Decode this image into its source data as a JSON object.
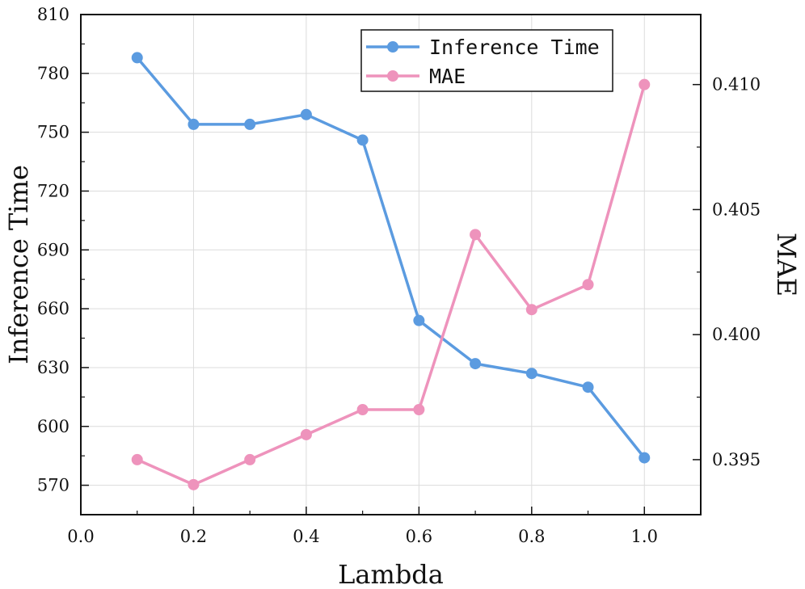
{
  "chart_data": {
    "type": "line",
    "x": [
      0.1,
      0.2,
      0.3,
      0.4,
      0.5,
      0.6,
      0.7,
      0.8,
      0.9,
      1.0
    ],
    "xlabel": "Lambda",
    "ylabel": "Inference Time",
    "y2label": "MAE",
    "xlim": [
      0.0,
      1.1
    ],
    "ylim": [
      555,
      810
    ],
    "y2lim": [
      0.3928,
      0.4128
    ],
    "x_ticks": [
      "0.0",
      "0.2",
      "0.4",
      "0.6",
      "0.8",
      "1.0"
    ],
    "x_tick_values": [
      0.0,
      0.2,
      0.4,
      0.6,
      0.8,
      1.0
    ],
    "y_ticks": [
      "570",
      "600",
      "630",
      "660",
      "690",
      "720",
      "750",
      "780",
      "810"
    ],
    "y_tick_values": [
      570,
      600,
      630,
      660,
      690,
      720,
      750,
      780,
      810
    ],
    "y2_ticks": [
      "0.395",
      "0.400",
      "0.405",
      "0.410"
    ],
    "y2_tick_values": [
      0.395,
      0.4,
      0.405,
      0.41
    ],
    "grid": true,
    "legend_position": "top-right",
    "series": [
      {
        "name": "Inference Time",
        "axis": "left",
        "color": "#5b9be0",
        "values": [
          788,
          754,
          754,
          759,
          746,
          654,
          632,
          627,
          620,
          584
        ]
      },
      {
        "name": "MAE",
        "axis": "right",
        "color": "#ee93bc",
        "values": [
          0.395,
          0.394,
          0.395,
          0.396,
          0.397,
          0.397,
          0.404,
          0.401,
          0.402,
          0.41
        ]
      }
    ]
  }
}
